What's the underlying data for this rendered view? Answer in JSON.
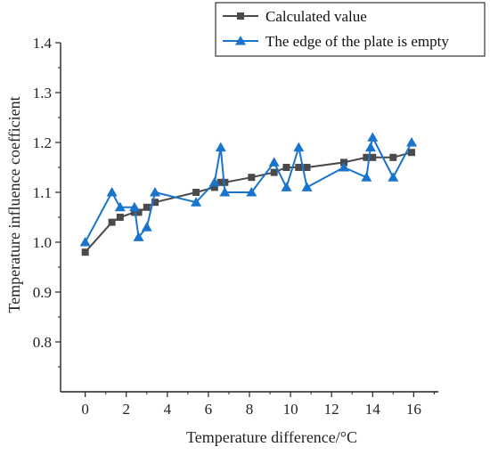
{
  "chart_data": {
    "type": "line",
    "xlabel": "Temperature difference/°C",
    "ylabel": "Temperature influence coefficient",
    "xlim": [
      -1.2,
      17.2
    ],
    "ylim": [
      0.7,
      1.4
    ],
    "xticks": [
      "0",
      "2",
      "4",
      "6",
      "8",
      "10",
      "12",
      "14",
      "16"
    ],
    "yticks": [
      "0.8",
      "0.9",
      "1.0",
      "1.1",
      "1.2",
      "1.3",
      "1.4"
    ],
    "legend_position": "top-right",
    "series": [
      {
        "name": "Calculated value",
        "color": "#4a4a4a",
        "marker": "square",
        "points": [
          [
            0.0,
            0.98
          ],
          [
            1.3,
            1.04
          ],
          [
            1.7,
            1.05
          ],
          [
            2.4,
            1.06
          ],
          [
            2.6,
            1.06
          ],
          [
            3.0,
            1.07
          ],
          [
            3.4,
            1.08
          ],
          [
            5.4,
            1.1
          ],
          [
            6.3,
            1.11
          ],
          [
            6.6,
            1.12
          ],
          [
            6.8,
            1.12
          ],
          [
            8.1,
            1.13
          ],
          [
            9.2,
            1.14
          ],
          [
            9.8,
            1.15
          ],
          [
            10.4,
            1.15
          ],
          [
            10.8,
            1.15
          ],
          [
            12.6,
            1.16
          ],
          [
            13.7,
            1.17
          ],
          [
            14.0,
            1.17
          ],
          [
            15.0,
            1.17
          ],
          [
            15.9,
            1.18
          ]
        ]
      },
      {
        "name": "The edge of the plate is empty",
        "color": "#1874cd",
        "marker": "triangle",
        "points": [
          [
            0.0,
            1.0
          ],
          [
            1.3,
            1.1
          ],
          [
            1.7,
            1.07
          ],
          [
            2.4,
            1.07
          ],
          [
            2.6,
            1.01
          ],
          [
            3.0,
            1.03
          ],
          [
            3.4,
            1.1
          ],
          [
            5.4,
            1.08
          ],
          [
            6.3,
            1.12
          ],
          [
            6.6,
            1.19
          ],
          [
            6.8,
            1.1
          ],
          [
            8.1,
            1.1
          ],
          [
            9.2,
            1.16
          ],
          [
            9.8,
            1.11
          ],
          [
            10.4,
            1.19
          ],
          [
            10.8,
            1.11
          ],
          [
            12.6,
            1.15
          ],
          [
            13.7,
            1.13
          ],
          [
            13.9,
            1.19
          ],
          [
            14.0,
            1.21
          ],
          [
            15.0,
            1.13
          ],
          [
            15.9,
            1.2
          ]
        ]
      }
    ]
  }
}
